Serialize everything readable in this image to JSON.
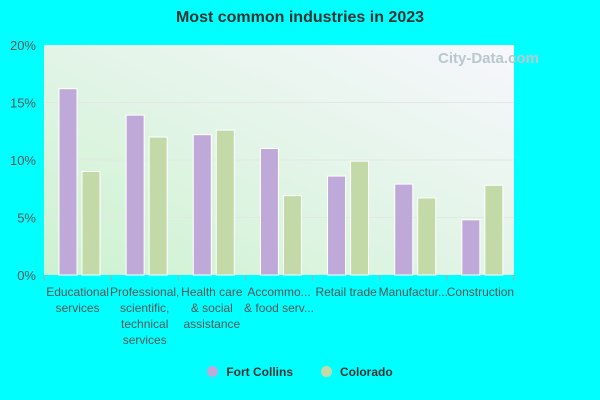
{
  "watermark": "City-Data.com",
  "chart_data": {
    "type": "bar",
    "title": "Most common industries in 2023",
    "categories": [
      [
        "Educational",
        "services"
      ],
      [
        "Professional,",
        "scientific,",
        "technical",
        "services"
      ],
      [
        "Health care",
        "& social",
        "assistance"
      ],
      [
        "Accommo...",
        "& food serv..."
      ],
      [
        "Retail trade"
      ],
      [
        "Manufactur..."
      ],
      [
        "Construction"
      ]
    ],
    "series": [
      {
        "name": "Fort Collins",
        "color": "#bea9d9",
        "values": [
          16.2,
          13.9,
          12.2,
          11.0,
          8.6,
          7.9,
          4.8
        ]
      },
      {
        "name": "Colorado",
        "color": "#c4d9a8",
        "values": [
          9.0,
          12.0,
          12.6,
          6.9,
          9.9,
          6.7,
          7.8
        ]
      }
    ],
    "ylim": [
      0,
      20
    ],
    "yticks": [
      "0%",
      "5%",
      "10%",
      "15%",
      "20%"
    ],
    "grid": true,
    "legend": "bottom"
  }
}
